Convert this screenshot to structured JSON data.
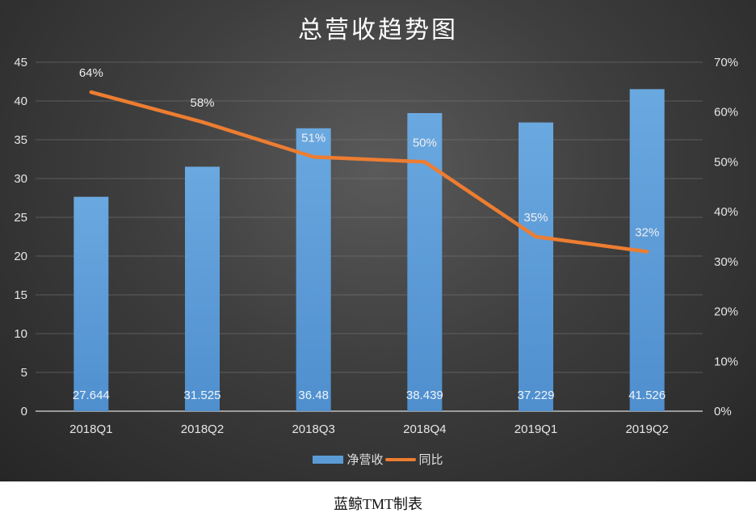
{
  "chart_data": {
    "type": "bar",
    "title": "总营收趋势图",
    "categories": [
      "2018Q1",
      "2018Q2",
      "2018Q3",
      "2018Q4",
      "2019Q1",
      "2019Q2"
    ],
    "series": [
      {
        "name": "净营收",
        "type": "bar",
        "axis": "left",
        "values": [
          27.644,
          31.525,
          36.48,
          38.439,
          37.229,
          41.526
        ],
        "labels": [
          "27.644",
          "31.525",
          "36.48",
          "38.439",
          "37.229",
          "41.526"
        ],
        "color": "#5b9bd5"
      },
      {
        "name": "同比",
        "type": "line",
        "axis": "right",
        "values": [
          64,
          58,
          51,
          50,
          35,
          32
        ],
        "labels": [
          "64%",
          "58%",
          "51%",
          "50%",
          "35%",
          "32%"
        ],
        "color": "#ed7d31"
      }
    ],
    "y_left": {
      "min": 0,
      "max": 45,
      "ticks": [
        0,
        5,
        10,
        15,
        20,
        25,
        30,
        35,
        40,
        45
      ]
    },
    "y_right": {
      "min": 0,
      "max": 70,
      "ticks": [
        "0%",
        "10%",
        "20%",
        "30%",
        "40%",
        "50%",
        "60%",
        "70%"
      ]
    },
    "grid": true,
    "legend_position": "bottom"
  },
  "credit": "蓝鲸TMT制表"
}
